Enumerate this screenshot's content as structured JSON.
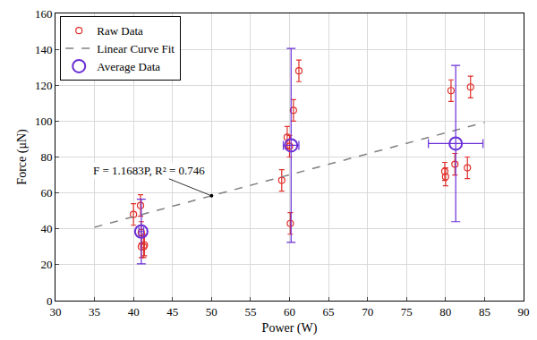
{
  "chart_data": {
    "type": "scatter",
    "xlabel": "Power (W)",
    "ylabel": "Force (μN)",
    "xlim": [
      30,
      90
    ],
    "xticks": [
      30,
      35,
      40,
      45,
      50,
      55,
      60,
      65,
      70,
      75,
      80,
      85,
      90
    ],
    "ylim": [
      0,
      160
    ],
    "yticks": [
      0,
      20,
      40,
      60,
      80,
      100,
      120,
      140,
      160
    ],
    "grid": true,
    "legend": "upper left",
    "series": [
      {
        "name": "Raw Data",
        "type": "scatter",
        "marker": "open circle",
        "color": "#e0302a",
        "x": [
          40.0,
          40.9,
          41.0,
          41.0,
          41.3,
          41.4,
          59.0,
          59.7,
          60.0,
          60.1,
          60.5,
          61.2,
          79.9,
          80.0,
          80.7,
          81.2,
          82.8,
          83.2
        ],
        "values": [
          48,
          53,
          38,
          30,
          30,
          31,
          67,
          91,
          86,
          43,
          106,
          128,
          72,
          69,
          117,
          76,
          74,
          119
        ],
        "y_error": [
          6,
          6,
          6,
          6,
          6,
          6,
          6,
          6,
          6,
          6,
          6,
          6,
          5,
          5,
          6,
          6,
          6,
          6
        ]
      },
      {
        "name": "Linear Curve Fit",
        "type": "line",
        "line_style": "dashed",
        "color": "#808080",
        "x": [
          35,
          85
        ],
        "values": [
          40.9,
          99.3
        ]
      },
      {
        "name": "Average Data",
        "type": "scatter",
        "marker": "open circle",
        "color": "#6a2fd6",
        "x": [
          41.0,
          60.2,
          81.3
        ],
        "values": [
          38.5,
          86.5,
          87.5
        ],
        "x_error": [
          0.3,
          1.0,
          3.5
        ],
        "y_error": [
          18,
          54,
          43.5
        ]
      }
    ],
    "annotations": [
      {
        "text": "F = 1.1683P, R² = 0.746",
        "x": 50,
        "y": 58.4
      }
    ]
  }
}
